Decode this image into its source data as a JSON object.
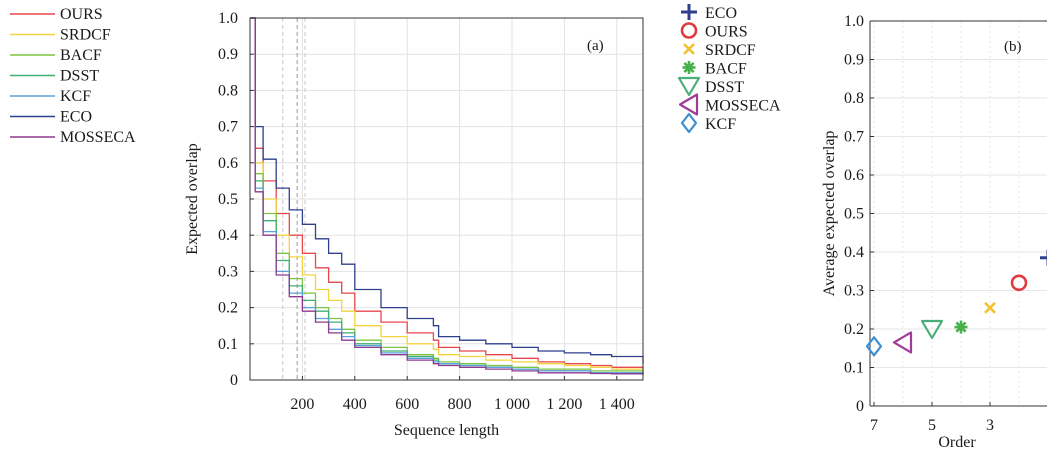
{
  "chart_data": [
    {
      "type": "line",
      "panel_label": "(a)",
      "xlabel": "Sequence length",
      "ylabel": "Expected overlap",
      "xlim": [
        0,
        1500
      ],
      "ylim": [
        0,
        1.0
      ],
      "x_ticks": [
        200,
        400,
        600,
        800,
        1000,
        1200,
        1400
      ],
      "x_tick_labels": [
        "200",
        "400",
        "600",
        "800",
        "1 000",
        "1 200",
        "1 400"
      ],
      "y_ticks": [
        0,
        0.1,
        0.2,
        0.3,
        0.4,
        0.5,
        0.6,
        0.7,
        0.8,
        0.9,
        1.0
      ],
      "y_tick_labels": [
        "0",
        "0.1",
        "0.2",
        "0.3",
        "0.4",
        "0.5",
        "0.6",
        "0.7",
        "0.8",
        "0.9",
        "1.0"
      ],
      "grid": true,
      "reference_lines_x": [
        125,
        180,
        210
      ],
      "legend_position": "left-outside",
      "x": [
        1,
        20,
        50,
        100,
        150,
        200,
        250,
        300,
        350,
        400,
        500,
        600,
        700,
        720,
        800,
        900,
        1000,
        1100,
        1200,
        1300,
        1380,
        1500
      ],
      "series": [
        {
          "name": "OURS",
          "color": "#e8474c",
          "values": [
            1.0,
            0.64,
            0.55,
            0.46,
            0.4,
            0.35,
            0.31,
            0.27,
            0.24,
            0.19,
            0.16,
            0.13,
            0.11,
            0.09,
            0.08,
            0.07,
            0.06,
            0.05,
            0.045,
            0.04,
            0.035,
            0.03
          ]
        },
        {
          "name": "SRDCF",
          "color": "#f5d33e",
          "values": [
            1.0,
            0.6,
            0.5,
            0.4,
            0.34,
            0.29,
            0.25,
            0.22,
            0.19,
            0.15,
            0.12,
            0.1,
            0.085,
            0.07,
            0.065,
            0.055,
            0.05,
            0.045,
            0.04,
            0.035,
            0.03,
            0.025
          ]
        },
        {
          "name": "BACF",
          "color": "#7cc441",
          "values": [
            1.0,
            0.57,
            0.46,
            0.35,
            0.28,
            0.24,
            0.2,
            0.17,
            0.14,
            0.11,
            0.09,
            0.07,
            0.06,
            0.05,
            0.045,
            0.04,
            0.035,
            0.03,
            0.03,
            0.025,
            0.025,
            0.02
          ]
        },
        {
          "name": "DSST",
          "color": "#3fb070",
          "values": [
            1.0,
            0.55,
            0.44,
            0.33,
            0.26,
            0.22,
            0.19,
            0.16,
            0.13,
            0.1,
            0.08,
            0.065,
            0.055,
            0.045,
            0.04,
            0.035,
            0.03,
            0.025,
            0.025,
            0.02,
            0.02,
            0.015
          ]
        },
        {
          "name": "KCF",
          "color": "#5aa0dc",
          "values": [
            1.0,
            0.53,
            0.41,
            0.3,
            0.24,
            0.2,
            0.17,
            0.14,
            0.12,
            0.095,
            0.075,
            0.06,
            0.05,
            0.045,
            0.04,
            0.035,
            0.03,
            0.025,
            0.025,
            0.02,
            0.02,
            0.015
          ]
        },
        {
          "name": "ECO",
          "color": "#2e3f8c",
          "values": [
            1.0,
            0.7,
            0.61,
            0.53,
            0.47,
            0.43,
            0.39,
            0.35,
            0.32,
            0.25,
            0.2,
            0.17,
            0.15,
            0.12,
            0.11,
            0.1,
            0.09,
            0.08,
            0.075,
            0.07,
            0.065,
            0.045
          ]
        },
        {
          "name": "MOSSECA",
          "color": "#8e3a8e",
          "values": [
            1.0,
            0.52,
            0.4,
            0.29,
            0.23,
            0.19,
            0.16,
            0.13,
            0.11,
            0.09,
            0.07,
            0.055,
            0.045,
            0.04,
            0.035,
            0.03,
            0.025,
            0.02,
            0.02,
            0.018,
            0.017,
            0.015
          ]
        }
      ]
    },
    {
      "type": "scatter",
      "panel_label": "(b)",
      "xlabel": "Order",
      "ylabel": "Average expected overlap",
      "xlim": [
        7,
        1
      ],
      "ylim": [
        0,
        1.0
      ],
      "x_tick_labels": [
        "7",
        "5",
        "3"
      ],
      "y_ticks": [
        0,
        0.1,
        0.2,
        0.3,
        0.4,
        0.5,
        0.6,
        0.7,
        0.8,
        0.9,
        1.0
      ],
      "y_tick_labels": [
        "0",
        "0.1",
        "0.2",
        "0.3",
        "0.4",
        "0.5",
        "0.6",
        "0.7",
        "0.8",
        "0.9",
        "1.0"
      ],
      "grid": true,
      "legend_position": "left-outside",
      "points": [
        {
          "name": "ECO",
          "order": 1,
          "value": 0.385,
          "marker": "plus",
          "color": "#2e3f8c"
        },
        {
          "name": "OURS",
          "order": 2,
          "value": 0.32,
          "marker": "circle",
          "color": "#e03a3e"
        },
        {
          "name": "SRDCF",
          "order": 3,
          "value": 0.255,
          "marker": "x",
          "color": "#f2c230"
        },
        {
          "name": "BACF",
          "order": 4,
          "value": 0.205,
          "marker": "asterisk",
          "color": "#47b04a"
        },
        {
          "name": "DSST",
          "order": 5,
          "value": 0.2,
          "marker": "triangle-down",
          "color": "#4caf7a"
        },
        {
          "name": "MOSSECA",
          "order": 6,
          "value": 0.165,
          "marker": "triangle-left",
          "color": "#a03b97"
        },
        {
          "name": "KCF",
          "order": 7,
          "value": 0.155,
          "marker": "diamond",
          "color": "#3f8fd0"
        }
      ]
    }
  ]
}
